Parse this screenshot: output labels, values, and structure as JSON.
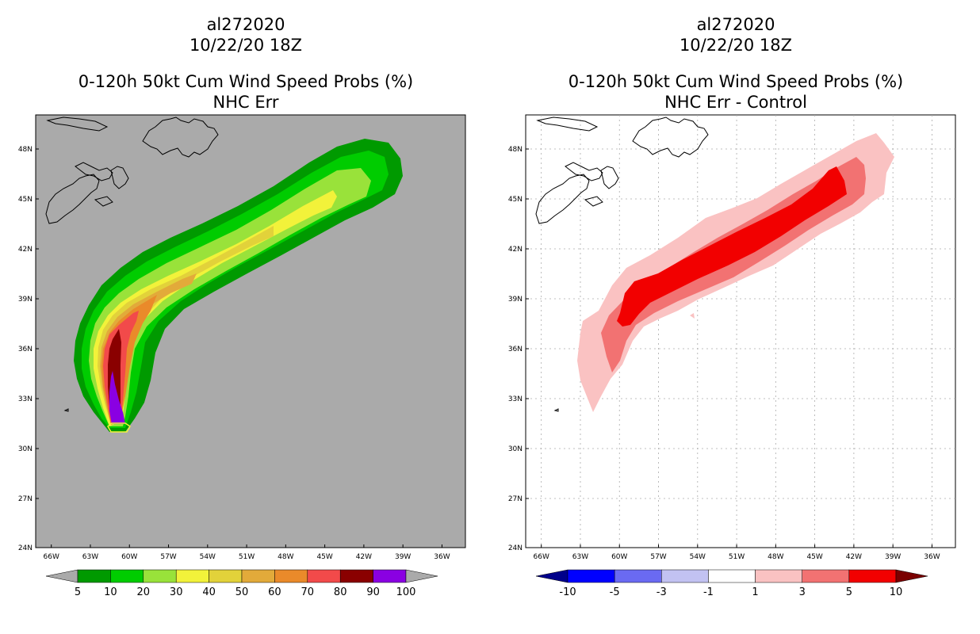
{
  "left": {
    "storm_id": "al272020",
    "datetime": "10/22/20 18Z",
    "product": "0-120h 50kt Cum Wind Speed Probs (%)",
    "subtitle": "NHC Err",
    "colorbar": {
      "labels": [
        "5",
        "10",
        "20",
        "30",
        "40",
        "50",
        "60",
        "70",
        "80",
        "90",
        "100"
      ],
      "colors": [
        "#009a00",
        "#00cc00",
        "#99e23a",
        "#f2f23a",
        "#e2d23a",
        "#e2aa3a",
        "#ea8a2a",
        "#f24a4a",
        "#8a0000",
        "#8a00e2"
      ],
      "extend_low_color": "#aaaaaa",
      "extend_high_color": "#aaaaaa"
    }
  },
  "right": {
    "storm_id": "al272020",
    "datetime": "10/22/20 18Z",
    "product": "0-120h 50kt Cum Wind Speed Probs (%)",
    "subtitle": "NHC Err - Control",
    "colorbar": {
      "labels": [
        "-10",
        "-5",
        "-3",
        "-1",
        "1",
        "3",
        "5",
        "10"
      ],
      "colors": [
        "#0000ff",
        "#6a6af2",
        "#c2c2f2",
        "#ffffff",
        "#fac2c2",
        "#f27272",
        "#f20000"
      ],
      "extend_low_color": "#00008a",
      "extend_high_color": "#7a0000"
    }
  },
  "axes": {
    "lon_labels": [
      "66W",
      "63W",
      "60W",
      "57W",
      "54W",
      "51W",
      "48W",
      "45W",
      "42W",
      "39W",
      "36W"
    ],
    "lat_labels": [
      "48N",
      "45N",
      "42N",
      "39N",
      "36N",
      "33N",
      "30N",
      "27N",
      "24N"
    ]
  }
}
